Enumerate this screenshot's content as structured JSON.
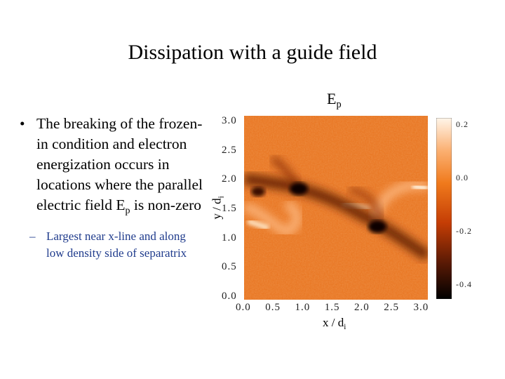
{
  "slide": {
    "title": "Dissipation with a guide field",
    "bullet_main_pre": "The breaking of the frozen-in condition and electron energization occurs in locations where the parallel electric field E",
    "bullet_main_sub": "p",
    "bullet_main_post": " is non-zero",
    "bullet_sub": "Largest near x-line and along low density side of separatrix",
    "bullet_glyph": "•",
    "dash_glyph": "–"
  },
  "figure": {
    "label_main": "E",
    "label_sub": "p",
    "colormap": [
      "#000000",
      "#5a1a05",
      "#c43d05",
      "#f07a1c",
      "#fbb072",
      "#fff6ea"
    ]
  },
  "chart_data": {
    "type": "heatmap",
    "title": "Ep",
    "xlabel": "x / d",
    "xlabel_sub": "i",
    "ylabel": "y / d",
    "ylabel_sub": "i",
    "xlim": [
      0.0,
      3.1
    ],
    "ylim": [
      -0.05,
      3.1
    ],
    "x_ticks": [
      "0.0",
      "0.5",
      "1.0",
      "1.5",
      "2.0",
      "2.5",
      "3.0"
    ],
    "y_ticks": [
      "0.0",
      "0.5",
      "1.0",
      "1.5",
      "2.0",
      "2.5",
      "3.0"
    ],
    "colorbar": {
      "range": [
        -0.45,
        0.23
      ],
      "ticks": [
        "0.2",
        "0.0",
        "-0.2",
        "-0.4"
      ]
    }
  }
}
